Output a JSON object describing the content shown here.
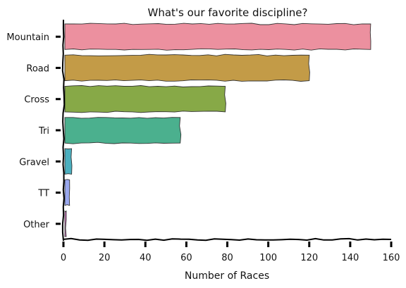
{
  "chart_data": {
    "type": "bar",
    "orientation": "horizontal",
    "title": "What's our favorite discipline?",
    "xlabel": "Number of Races",
    "ylabel": "",
    "categories": [
      "Mountain",
      "Road",
      "Cross",
      "Tri",
      "Gravel",
      "TT",
      "Other"
    ],
    "values": [
      150,
      120,
      79,
      57,
      4,
      3,
      1
    ],
    "colors": [
      "#ec909f",
      "#c39b47",
      "#87a947",
      "#4bb08e",
      "#4bafbf",
      "#9aa8ef",
      "#e47fd2"
    ],
    "xlim": [
      0,
      160
    ],
    "xticks": [
      "0",
      "20",
      "40",
      "60",
      "80",
      "100",
      "120",
      "140",
      "160"
    ],
    "grid": false,
    "style": "xkcd"
  }
}
